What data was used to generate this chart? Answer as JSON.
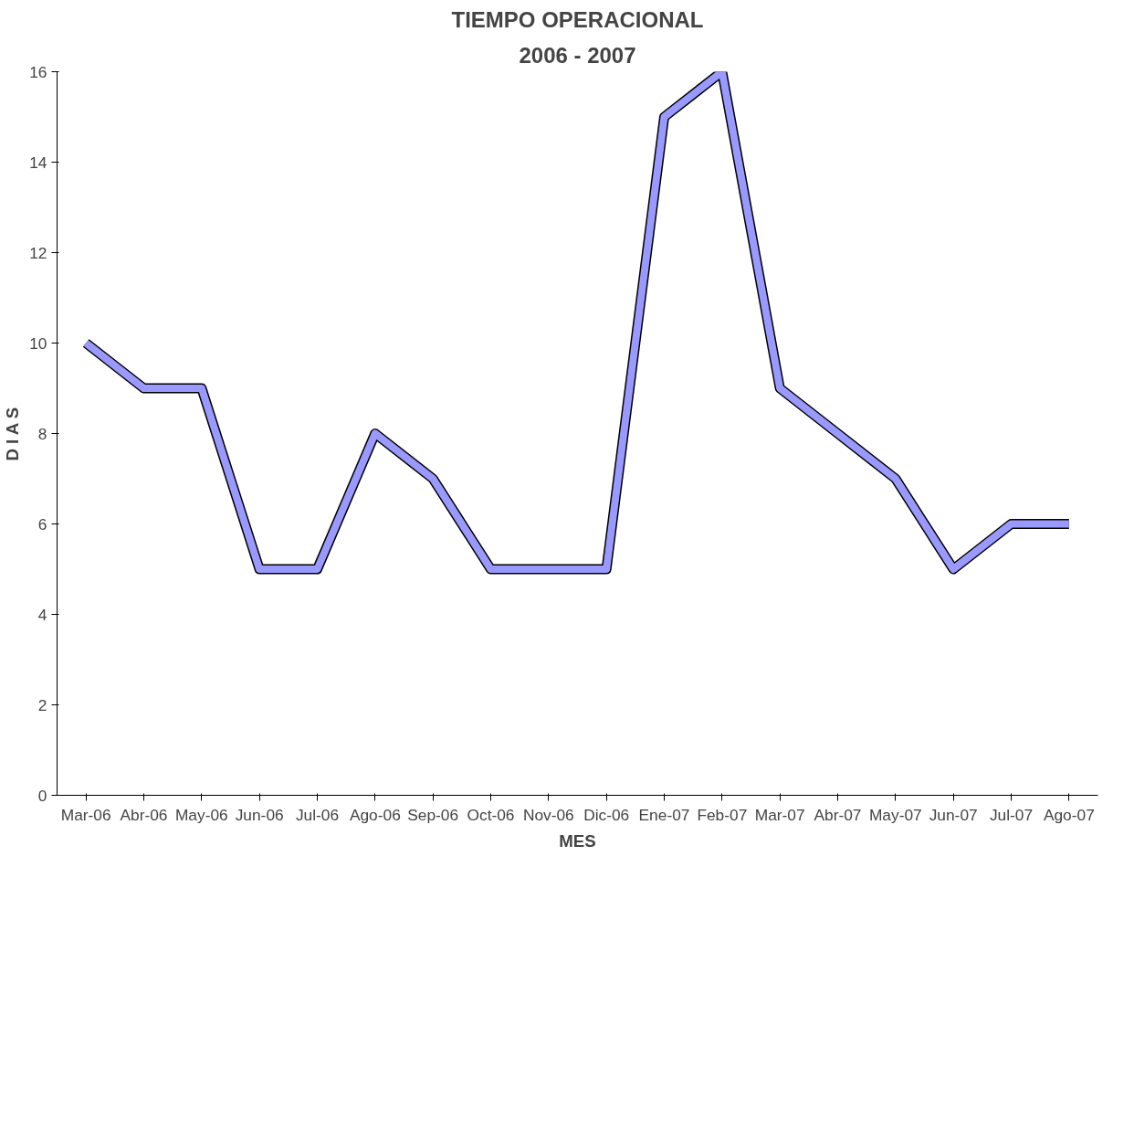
{
  "chart_data": {
    "type": "line",
    "title": "TIEMPO OPERACIONAL",
    "subtitle": "2006 - 2007",
    "xlabel": "MES",
    "ylabel": "D I A S",
    "categories": [
      "Mar-06",
      "Abr-06",
      "May-06",
      "Jun-06",
      "Jul-06",
      "Ago-06",
      "Sep-06",
      "Oct-06",
      "Nov-06",
      "Dic-06",
      "Ene-07",
      "Feb-07",
      "Mar-07",
      "Abr-07",
      "May-07",
      "Jun-07",
      "Jul-07",
      "Ago-07"
    ],
    "series": [
      {
        "color": "#9999ff",
        "values": [
          10,
          9,
          9,
          5,
          5,
          8,
          7,
          5,
          5,
          5,
          15,
          16,
          9,
          8,
          7,
          5,
          6,
          6
        ]
      }
    ],
    "ylim": [
      0,
      16
    ],
    "yticks": [
      0,
      2,
      4,
      6,
      8,
      10,
      12,
      14,
      16
    ],
    "grid": false,
    "marker": "none",
    "line_style": "solid"
  }
}
